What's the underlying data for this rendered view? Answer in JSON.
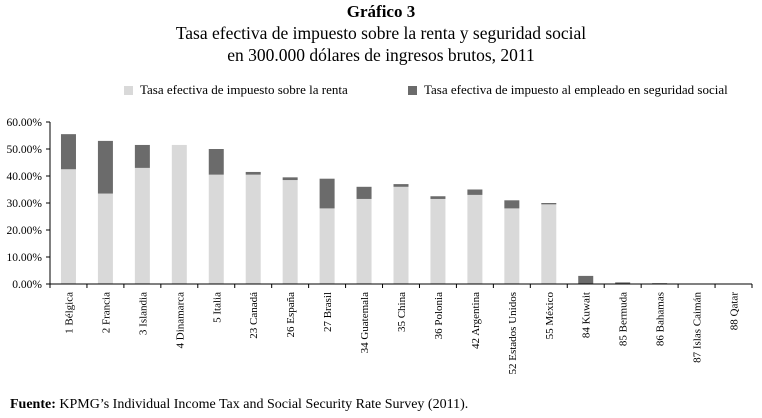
{
  "header": {
    "title": "Gráfico 3",
    "subtitle_line1": "Tasa efectiva de impuesto sobre la renta y seguridad social",
    "subtitle_line2": "en 300.000 dólares de ingresos brutos, 2011"
  },
  "source": {
    "label": "Fuente:",
    "text": "KPMG’s Individual Income Tax and Social Security Rate Survey (2011)."
  },
  "colors": {
    "renta": "#d9d9d9",
    "seguridad": "#6b6b6b",
    "axis": "#000000"
  },
  "chart_data": {
    "type": "bar",
    "stacked": true,
    "title": "Tasa efectiva de impuesto sobre la renta y seguridad social en 300.000 dólares de ingresos brutos, 2011",
    "legend_position": "top",
    "grid": false,
    "ylim": [
      0,
      60
    ],
    "yticks": [
      0,
      10,
      20,
      30,
      40,
      50,
      60
    ],
    "ytick_labels": [
      "0.00%",
      "10.00%",
      "20.00%",
      "30.00%",
      "40.00%",
      "50.00%",
      "60.00%"
    ],
    "categories": [
      "1 Bélgica",
      "2 Francia",
      "3 Islandia",
      "4 Dinamarca",
      "5 Italia",
      "23 Canadá",
      "26 España",
      "27 Brasil",
      "34 Guatemala",
      "35 China",
      "36 Polonia",
      "42 Argentina",
      "52 Estados Unidos",
      "55 México",
      "84 Kuwait",
      "85 Bermuda",
      "86 Bahamas",
      "87 Islas Caimán",
      "88 Qatar"
    ],
    "series": [
      {
        "name": "Tasa efectiva de impuesto sobre la renta",
        "key": "renta",
        "values": [
          42.5,
          33.5,
          43.0,
          51.5,
          40.5,
          40.5,
          38.5,
          28.0,
          31.5,
          36.0,
          31.5,
          33.0,
          28.0,
          29.5,
          0.0,
          0.0,
          0.0,
          0.0,
          0.0
        ]
      },
      {
        "name": "Tasa efectiva de impuesto al empleado en seguridad social",
        "key": "seguridad",
        "values": [
          13.0,
          19.5,
          8.5,
          0.0,
          9.5,
          1.0,
          1.0,
          11.0,
          4.5,
          1.0,
          1.0,
          2.0,
          3.0,
          0.5,
          3.0,
          0.6,
          0.3,
          0.0,
          0.0
        ]
      }
    ]
  }
}
